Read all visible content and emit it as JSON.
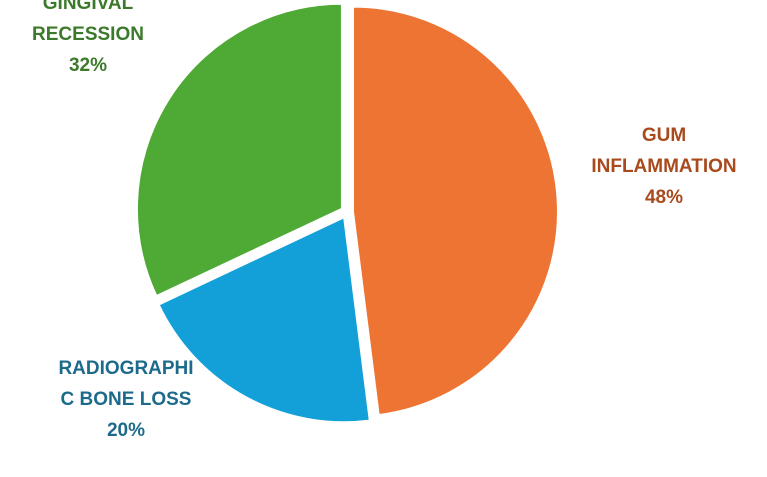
{
  "chart_data": {
    "type": "pie",
    "title": "",
    "slices": [
      {
        "category_lines": [
          "GUM",
          "INFLAMMATION"
        ],
        "value": 48,
        "value_label": "48%",
        "color": "#ED7433",
        "label_color": "#A94A1D"
      },
      {
        "category_lines": [
          "RADIOGRAPHI",
          "C BONE LOSS"
        ],
        "value": 20,
        "value_label": "20%",
        "color": "#13A0D8",
        "label_color": "#1D6B8B"
      },
      {
        "category_lines": [
          "GINGIVAL",
          "RECESSION"
        ],
        "value": 32,
        "value_label": "32%",
        "color": "#4EA935",
        "label_color": "#3B7A2A"
      }
    ],
    "start_angle_deg": 0,
    "direction": "clockwise",
    "exploded": true,
    "legend": "none",
    "data_labels": "outside"
  }
}
